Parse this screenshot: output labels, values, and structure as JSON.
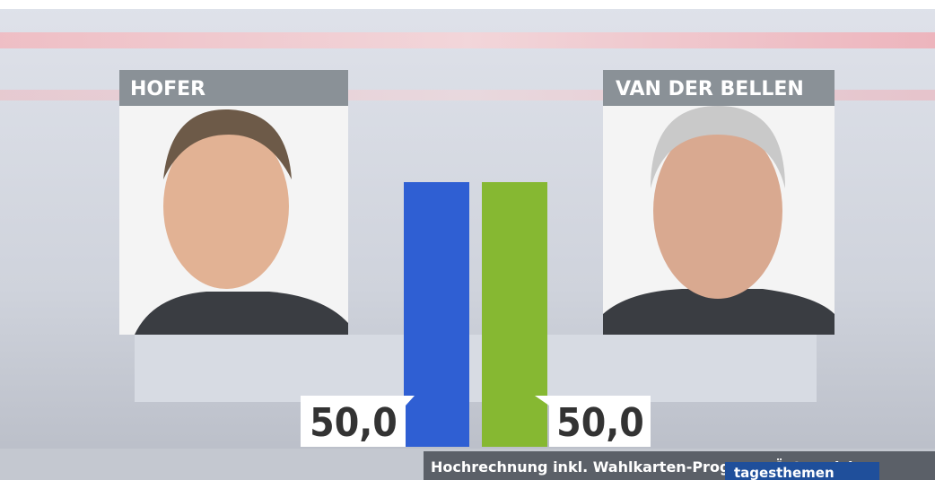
{
  "chart_data": {
    "type": "bar",
    "categories": [
      "HOFER",
      "VAN DER BELLEN"
    ],
    "values": [
      50,
      50
    ],
    "value_labels": [
      "50,0",
      "50,0"
    ],
    "colors": [
      "#2f5fd3",
      "#86b832"
    ],
    "footer": "Hochrechnung inkl. Wahlkarten-Prognose Österreich",
    "logo": "tagesthemen"
  }
}
